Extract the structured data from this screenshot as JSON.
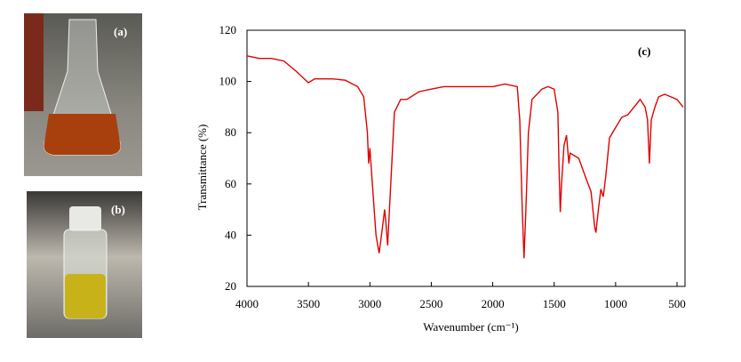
{
  "photos": [
    {
      "label": "(a)"
    },
    {
      "label": "(b)"
    }
  ],
  "chart_data": {
    "type": "line",
    "annotation": "(c)",
    "x_label": "Wavenumber (cm⁻¹)",
    "y_label": "Transmittance (%)",
    "color": "#e00000",
    "x": [
      4000,
      3900,
      3800,
      3700,
      3600,
      3500,
      3450,
      3300,
      3200,
      3100,
      3050,
      3020,
      3010,
      3000,
      2980,
      2950,
      2925,
      2900,
      2880,
      2870,
      2855,
      2830,
      2800,
      2750,
      2700,
      2600,
      2500,
      2400,
      2300,
      2200,
      2100,
      2000,
      1900,
      1800,
      1780,
      1760,
      1745,
      1730,
      1710,
      1680,
      1600,
      1550,
      1500,
      1470,
      1460,
      1450,
      1440,
      1420,
      1400,
      1380,
      1370,
      1300,
      1240,
      1200,
      1170,
      1160,
      1140,
      1120,
      1100,
      1080,
      1050,
      1000,
      950,
      900,
      850,
      800,
      760,
      740,
      725,
      710,
      680,
      650,
      600,
      550,
      500,
      450
    ],
    "values": [
      110,
      109,
      109,
      108,
      104,
      99.5,
      101,
      101,
      100.5,
      98,
      94,
      80,
      68,
      74,
      60,
      40,
      33,
      42,
      50,
      45,
      36,
      60,
      88,
      93,
      93,
      96,
      97,
      98,
      98,
      98,
      98,
      98,
      99,
      98,
      85,
      50,
      31,
      50,
      80,
      93,
      97,
      98,
      97,
      88,
      65,
      49,
      60,
      75,
      79,
      68,
      72,
      70,
      62,
      57,
      43,
      41,
      50,
      58,
      55,
      63,
      78,
      82,
      86,
      87,
      90,
      93,
      90,
      85,
      68,
      85,
      90,
      94,
      95,
      94,
      93,
      90
    ],
    "xlim": [
      4000,
      435
    ],
    "ylim": [
      20,
      120
    ],
    "xticks": [
      4000,
      3500,
      3000,
      2500,
      2000,
      1500,
      1000,
      500
    ],
    "yticks": [
      20,
      40,
      60,
      80,
      100,
      120
    ]
  }
}
